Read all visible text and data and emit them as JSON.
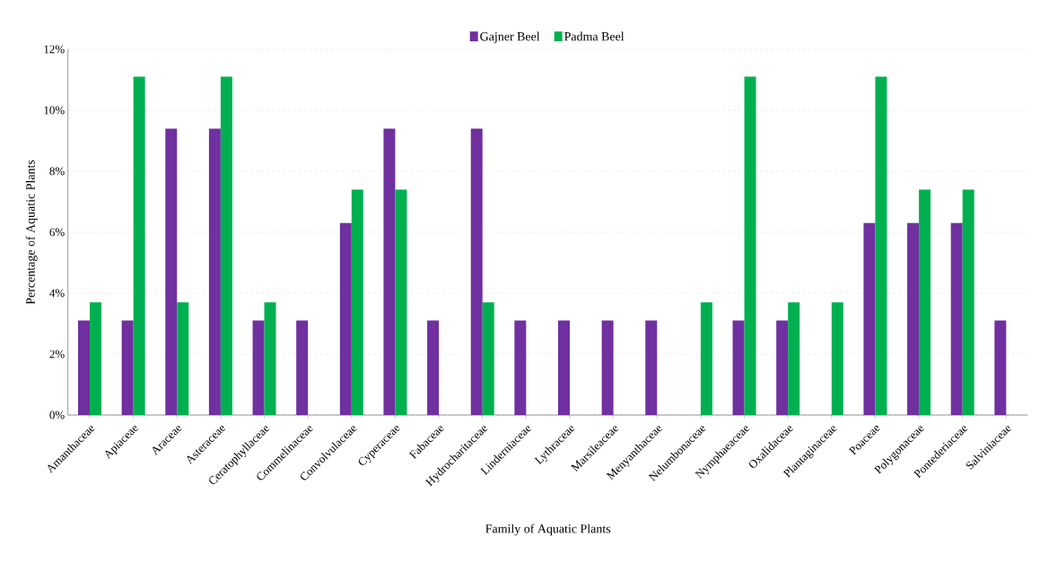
{
  "chart_data": {
    "type": "bar",
    "xlabel": "Family of Aquatic Plants",
    "ylabel": "Percentage of Aquatic Plants",
    "categories": [
      "Amanthaceae",
      "Apiaceae",
      "Araceae",
      "Asteraceae",
      "Ceratophyllaceae",
      "Commelinaceae",
      "Convolvulaceae",
      "Cyperaceae",
      "Fabaceae",
      "Hydrocharitaceae",
      "Linderniaceae",
      "Lythraceae",
      "Marsileaceae",
      "Menyanthaceae",
      "Nelumbonaceae",
      "Nymphaeaceae",
      "Oxalidaceae",
      "Plantaginaceae",
      "Poaceae",
      "Polygonaceae",
      "Pontederiaceae",
      "Salviniaceae"
    ],
    "series": [
      {
        "name": "Gajner Beel",
        "color": "#7030a0",
        "values": [
          3.1,
          3.1,
          9.4,
          9.4,
          3.1,
          3.1,
          6.3,
          9.4,
          3.1,
          9.4,
          3.1,
          3.1,
          3.1,
          3.1,
          0,
          3.1,
          3.1,
          0,
          6.3,
          6.3,
          6.3,
          3.1
        ]
      },
      {
        "name": "Padma Beel",
        "color": "#00b050",
        "values": [
          3.7,
          11.1,
          3.7,
          11.1,
          3.7,
          0,
          7.4,
          7.4,
          0,
          3.7,
          0,
          0,
          0,
          0,
          3.7,
          11.1,
          3.7,
          3.7,
          11.1,
          7.4,
          7.4,
          0
        ]
      }
    ],
    "ylim": [
      0,
      12
    ],
    "yticks": [
      {
        "value": 0,
        "label": "0%"
      },
      {
        "value": 2,
        "label": "2%"
      },
      {
        "value": 4,
        "label": "4%"
      },
      {
        "value": 6,
        "label": "6%"
      },
      {
        "value": 8,
        "label": "8%"
      },
      {
        "value": 10,
        "label": "10%"
      },
      {
        "value": 12,
        "label": "12%"
      }
    ],
    "grid": "y",
    "legend": "top"
  }
}
